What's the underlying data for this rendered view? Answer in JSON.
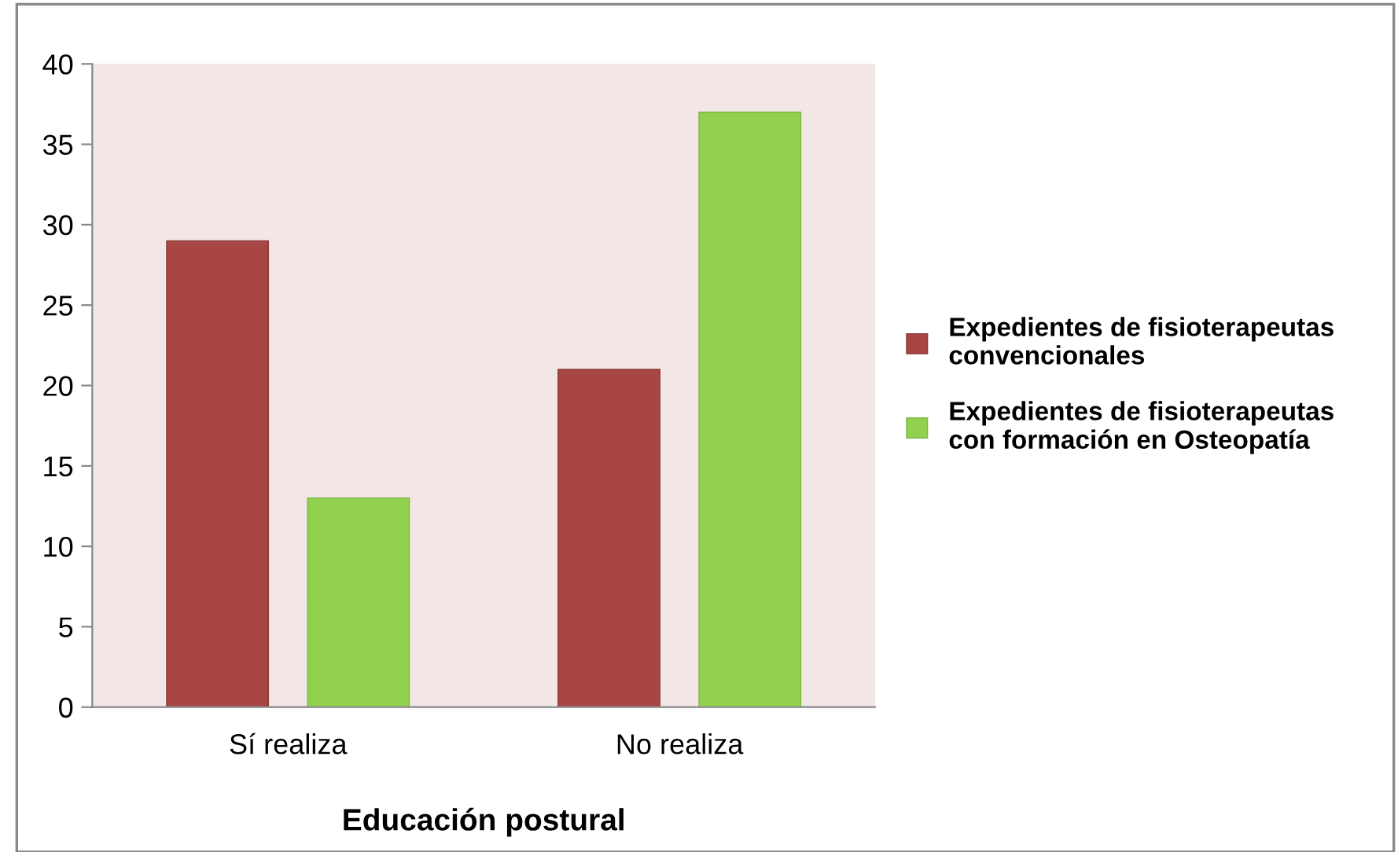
{
  "chart_data": {
    "type": "bar",
    "xlabel": "Educación postural",
    "categories": [
      "Sí realiza",
      "No realiza"
    ],
    "series": [
      {
        "name": "Expedientes de fisioterapeutas\nconvencionales",
        "color": "#a84646",
        "values": [
          29,
          21
        ]
      },
      {
        "name": "Expedientes de fisioterapeutas\ncon formación en Osteopatía",
        "color": "#92d050",
        "values": [
          13,
          37
        ]
      }
    ],
    "ylim": [
      0,
      40
    ],
    "yticks": [
      0,
      5,
      10,
      15,
      20,
      25,
      30,
      35,
      40
    ],
    "grid": false,
    "legend": "right"
  }
}
